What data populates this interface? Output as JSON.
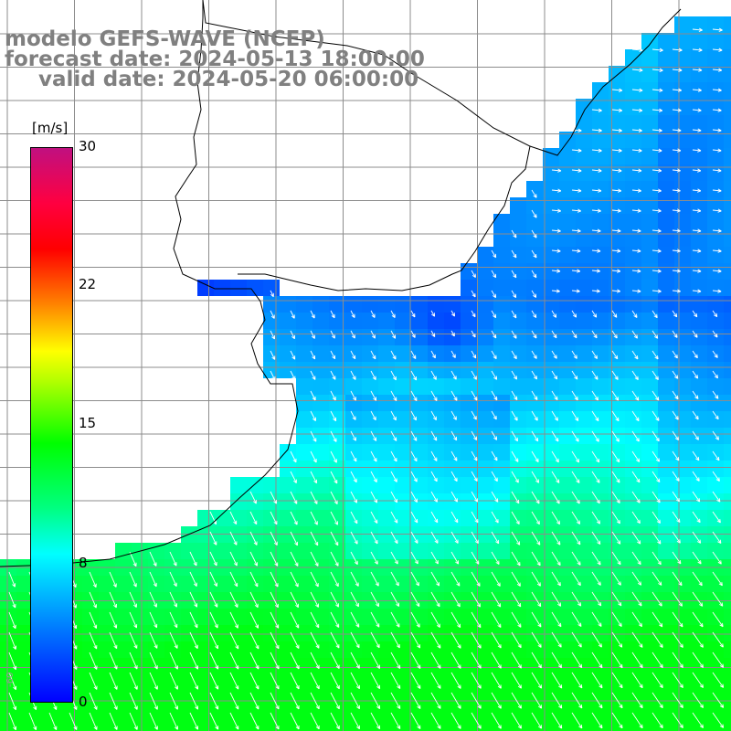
{
  "title": {
    "line1": "modelo GEFS-WAVE (NCEP)",
    "line2": "forecast date: 2024-05-13 18:00:00",
    "line3": "valid date: 2024-05-20 06:00:00"
  },
  "colorbar": {
    "unit": "[m/s]",
    "min": 0,
    "max": 30,
    "ticks": [
      "30",
      "22",
      "15",
      "8",
      "0"
    ]
  },
  "map": {
    "variable": "wind speed",
    "wind_direction": "southward / south-southeast arrows",
    "grid_lines": true
  },
  "colors": {
    "title_gray": "#808080",
    "grid": "#8c8c8c",
    "coast": "#000000",
    "arrow": "#ffffff"
  }
}
